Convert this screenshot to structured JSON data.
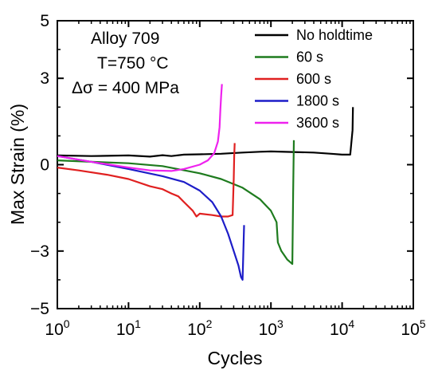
{
  "chart_data": {
    "type": "line",
    "xlabel": "Cycles",
    "ylabel": "Max Strain (%)",
    "xscale": "log",
    "xlim": [
      1,
      100000
    ],
    "ylim": [
      -5,
      5
    ],
    "x_ticks": [
      {
        "value": 1,
        "base": "10",
        "exp": "0"
      },
      {
        "value": 10,
        "base": "10",
        "exp": "1"
      },
      {
        "value": 100,
        "base": "10",
        "exp": "2"
      },
      {
        "value": 1000,
        "base": "10",
        "exp": "3"
      },
      {
        "value": 10000,
        "base": "10",
        "exp": "4"
      },
      {
        "value": 100000,
        "base": "10",
        "exp": "5"
      }
    ],
    "y_ticks": [
      {
        "value": 5,
        "label": "5"
      },
      {
        "value": 3,
        "label": "3"
      },
      {
        "value": 0,
        "label": "0"
      },
      {
        "value": -3,
        "label": "−3"
      },
      {
        "value": -5,
        "label": "−5"
      }
    ],
    "annotations": {
      "alloy": "Alloy 709",
      "temperature": "T=750 °C",
      "stress": "Δσ = 400 MPa"
    },
    "legend_position": "top-right",
    "series": [
      {
        "name": "No holdtime",
        "color": "#000000",
        "x": [
          1,
          3,
          10,
          20,
          30,
          40,
          60,
          100,
          200,
          400,
          700,
          1000,
          2000,
          4000,
          7000,
          10000,
          13000,
          14000,
          14200
        ],
        "y": [
          0.32,
          0.3,
          0.32,
          0.28,
          0.33,
          0.3,
          0.35,
          0.36,
          0.38,
          0.42,
          0.45,
          0.46,
          0.44,
          0.42,
          0.38,
          0.35,
          0.35,
          1.2,
          2.0
        ]
      },
      {
        "name": "60 s",
        "color": "#1e7b1e",
        "x": [
          1,
          3,
          10,
          30,
          100,
          200,
          400,
          700,
          1000,
          1200,
          1250,
          1400,
          1700,
          2000,
          2050,
          2100
        ],
        "y": [
          0.15,
          0.1,
          0.05,
          -0.05,
          -0.3,
          -0.5,
          -0.8,
          -1.2,
          -1.6,
          -2.0,
          -2.7,
          -3.0,
          -3.3,
          -3.45,
          -1.0,
          0.85
        ]
      },
      {
        "name": "600 s",
        "color": "#e02020",
        "x": [
          1,
          2,
          5,
          10,
          20,
          30,
          40,
          50,
          60,
          80,
          90,
          100,
          150,
          200,
          250,
          290,
          300,
          305,
          310
        ],
        "y": [
          -0.1,
          -0.2,
          -0.35,
          -0.5,
          -0.75,
          -0.85,
          -1.0,
          -1.1,
          -1.3,
          -1.6,
          -1.8,
          -1.7,
          -1.75,
          -1.8,
          -1.8,
          -1.75,
          -0.5,
          0.3,
          0.75
        ]
      },
      {
        "name": "1800 s",
        "color": "#1d1dc8",
        "x": [
          1,
          3,
          10,
          30,
          60,
          100,
          150,
          200,
          250,
          300,
          350,
          380,
          400,
          410,
          420
        ],
        "y": [
          0.3,
          0.1,
          -0.15,
          -0.4,
          -0.6,
          -0.9,
          -1.3,
          -1.8,
          -2.4,
          -3.0,
          -3.5,
          -3.9,
          -4.0,
          -3.0,
          -2.1
        ]
      },
      {
        "name": "3600 s",
        "color": "#ee22ee",
        "x": [
          1,
          3,
          10,
          20,
          40,
          60,
          100,
          130,
          160,
          180,
          190,
          195,
          200,
          205
        ],
        "y": [
          0.3,
          0.1,
          -0.1,
          -0.2,
          -0.22,
          -0.15,
          0.0,
          0.15,
          0.4,
          0.8,
          1.3,
          1.9,
          2.4,
          2.8
        ]
      }
    ]
  }
}
